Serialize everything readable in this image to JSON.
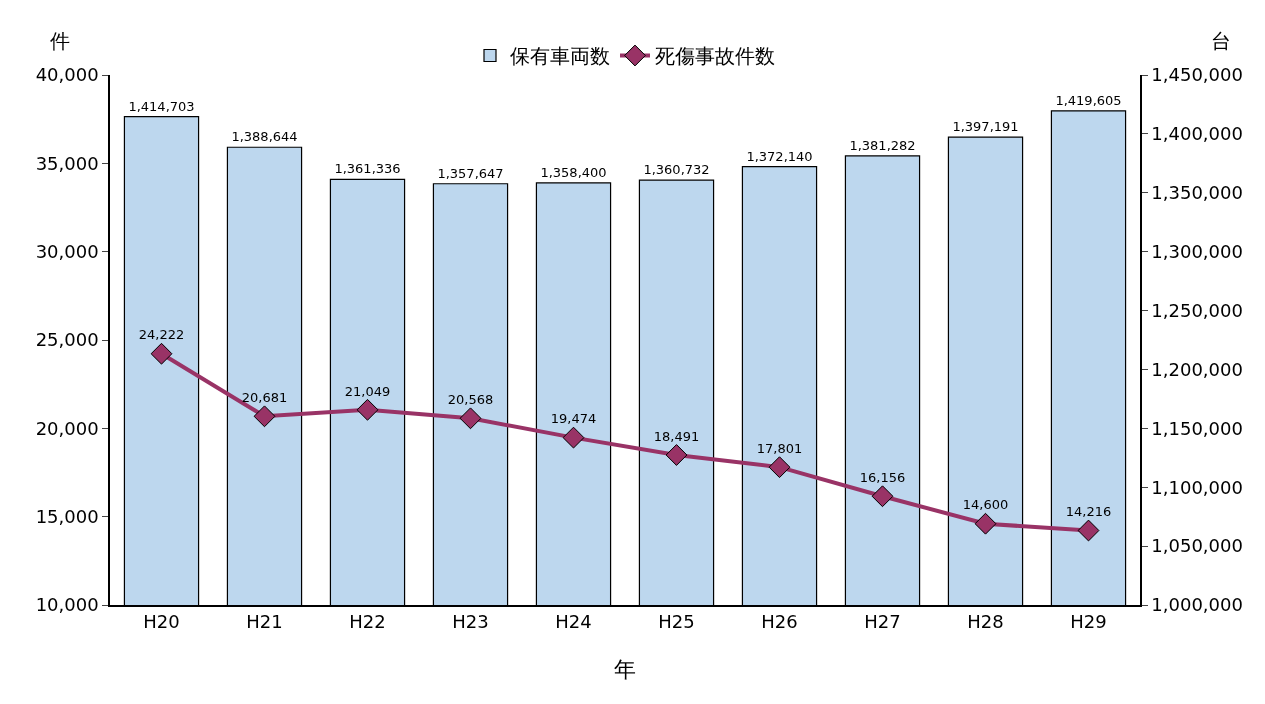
{
  "chart_data": {
    "type": "bar",
    "ylabel": "件",
    "y2label": "台",
    "xlabel": "年",
    "categories": [
      "H20",
      "H21",
      "H22",
      "H23",
      "H24",
      "H25",
      "H26",
      "H27",
      "H28",
      "H29"
    ],
    "series": [
      {
        "name": "保有車両数",
        "axis": "y2",
        "color": "#bdd7ee",
        "values": [
          1414703,
          1388644,
          1361336,
          1357647,
          1358400,
          1360732,
          1372140,
          1381282,
          1397191,
          1419605
        ],
        "value_labels": [
          "1,414,703",
          "1,388,644",
          "1,361,336",
          "1,357,647",
          "1,358,400",
          "1,360,732",
          "1,372,140",
          "1,381,282",
          "1,397,191",
          "1,419,605"
        ]
      },
      {
        "name": "死傷事故件数",
        "type": "line",
        "color": "#993366",
        "marker": "diamond",
        "values": [
          24222,
          20681,
          21049,
          20568,
          19474,
          18491,
          17801,
          16156,
          14600,
          14216
        ],
        "value_labels": [
          "24,222",
          "20,681",
          "21,049",
          "20,568",
          "19,474",
          "18,491",
          "17,801",
          "16,156",
          "14,600",
          "14,216"
        ]
      }
    ],
    "ylim": [
      10000,
      40000
    ],
    "yticks": [
      {
        "value": 10000,
        "label": "10,000"
      },
      {
        "value": 15000,
        "label": "15,000"
      },
      {
        "value": 20000,
        "label": "20,000"
      },
      {
        "value": 25000,
        "label": "25,000"
      },
      {
        "value": 30000,
        "label": "30,000"
      },
      {
        "value": 35000,
        "label": "35,000"
      },
      {
        "value": 40000,
        "label": "40,000"
      }
    ],
    "y2lim": [
      1000000,
      1450000
    ],
    "y2ticks": [
      {
        "value": 1000000,
        "label": "1,000,000"
      },
      {
        "value": 1050000,
        "label": "1,050,000"
      },
      {
        "value": 1100000,
        "label": "1,100,000"
      },
      {
        "value": 1150000,
        "label": "1,150,000"
      },
      {
        "value": 1200000,
        "label": "1,200,000"
      },
      {
        "value": 1250000,
        "label": "1,250,000"
      },
      {
        "value": 1300000,
        "label": "1,300,000"
      },
      {
        "value": 1350000,
        "label": "1,350,000"
      },
      {
        "value": 1400000,
        "label": "1,400,000"
      },
      {
        "value": 1450000,
        "label": "1,450,000"
      }
    ],
    "legend": "top"
  }
}
